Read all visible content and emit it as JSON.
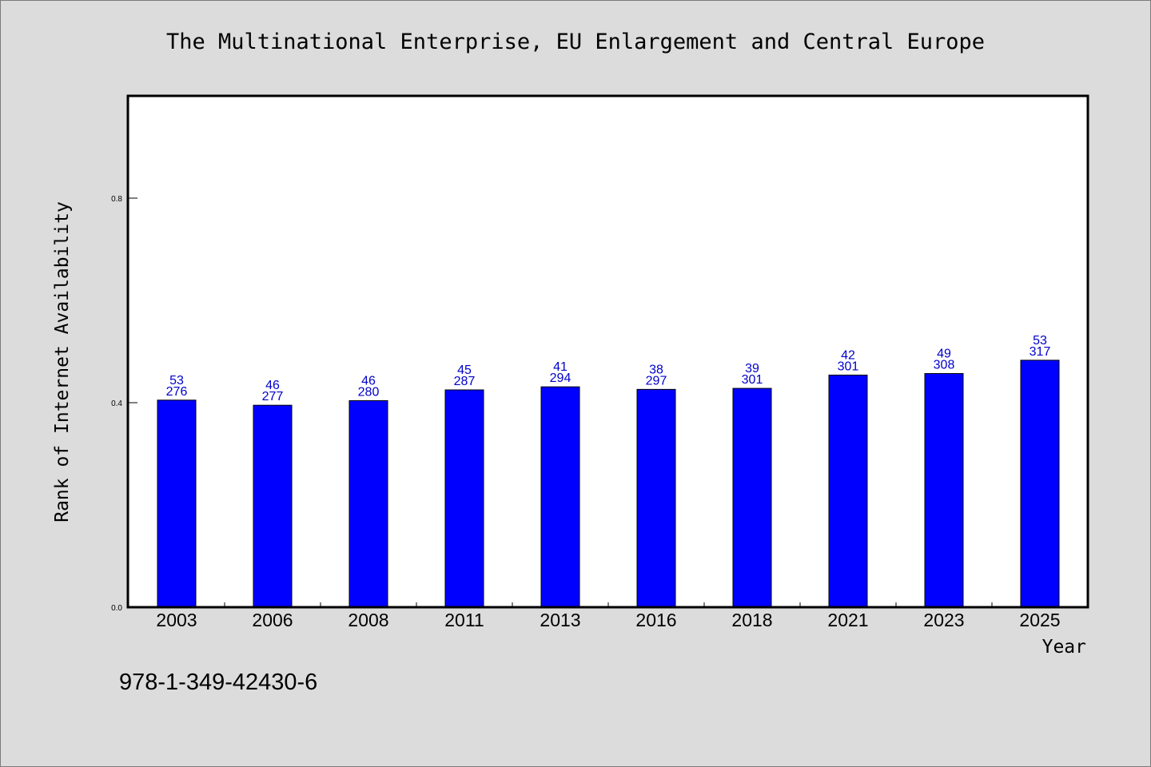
{
  "chart_data": {
    "type": "bar",
    "title": "The Multinational Enterprise, EU Enlargement and Central Europe",
    "xlabel": "Year",
    "ylabel": "Rank of Internet Availability",
    "categories": [
      "2003",
      "2006",
      "2008",
      "2011",
      "2013",
      "2016",
      "2018",
      "2021",
      "2023",
      "2025"
    ],
    "values": [
      0.405,
      0.395,
      0.404,
      0.425,
      0.431,
      0.426,
      0.428,
      0.454,
      0.457,
      0.483
    ],
    "labels_top": [
      "53",
      "46",
      "46",
      "45",
      "41",
      "38",
      "39",
      "42",
      "49",
      "53"
    ],
    "labels_bottom": [
      "276",
      "277",
      "280",
      "287",
      "294",
      "297",
      "301",
      "301",
      "308",
      "317"
    ],
    "yticks": [
      "0.0",
      "0.4",
      "0.8"
    ],
    "ylim": [
      0,
      1.0
    ],
    "grid": false,
    "legend": "none",
    "bar_color": "#0000ff",
    "label_color": "#0000cc"
  },
  "footer": {
    "isbn": "978-1-349-42430-6"
  }
}
